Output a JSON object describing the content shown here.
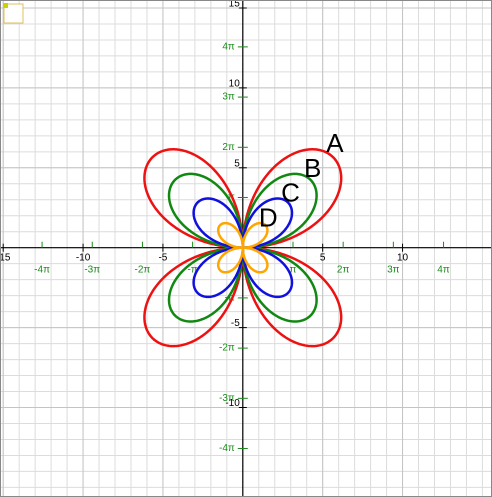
{
  "chart_data": {
    "type": "polar_rose",
    "series": [
      {
        "name": "A",
        "color": "#ee1111",
        "amplitude": 8
      },
      {
        "name": "B",
        "color": "#118811",
        "amplitude": 6
      },
      {
        "name": "C",
        "color": "#1111dd",
        "amplitude": 4
      },
      {
        "name": "D",
        "color": "#ffa500",
        "amplitude": 2
      }
    ],
    "xlim": [
      -15.2,
      15.6
    ],
    "ylim": [
      -15.6,
      15.5
    ],
    "xticks": [
      -15,
      -10,
      -5,
      5,
      10
    ],
    "yticks": [
      -10,
      -5,
      5,
      10,
      15
    ],
    "xpiticks": [
      {
        "value": -12.566,
        "label": "-4π"
      },
      {
        "value": -9.425,
        "label": "-3π"
      },
      {
        "value": -6.283,
        "label": "-2π"
      },
      {
        "value": -3.142,
        "label": "-π"
      },
      {
        "value": 3.142,
        "label": "π"
      },
      {
        "value": 6.283,
        "label": "2π"
      },
      {
        "value": 9.425,
        "label": "3π"
      },
      {
        "value": 12.566,
        "label": "4π"
      }
    ],
    "ypiticks": [
      {
        "value": -12.566,
        "label": "-4π"
      },
      {
        "value": -9.425,
        "label": "-3π"
      },
      {
        "value": -6.283,
        "label": "-2π"
      },
      {
        "value": -3.142,
        "label": "-π"
      },
      {
        "value": 3.142,
        "label": "π"
      },
      {
        "value": 6.283,
        "label": "2π"
      },
      {
        "value": 9.425,
        "label": "3π"
      },
      {
        "value": 12.566,
        "label": "4π"
      }
    ],
    "grid": true,
    "grid_step": 1
  }
}
